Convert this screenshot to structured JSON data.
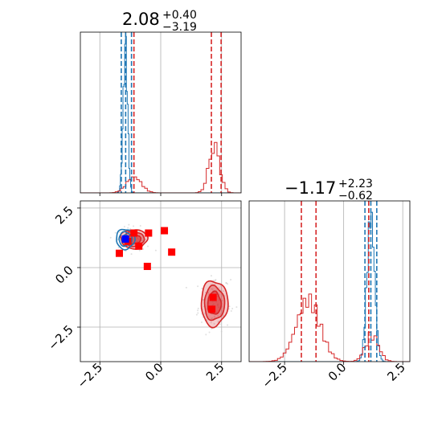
{
  "chart_data": {
    "type": "corner",
    "parameters": 2,
    "titles": [
      {
        "value": "2.08",
        "plus": "+0.40",
        "minus": "−3.19"
      },
      {
        "value": "−1.17",
        "plus": "+2.23",
        "minus": "−0.62"
      }
    ],
    "axes": {
      "param1_range": [
        -3.3,
        3.3
      ],
      "param2_range": [
        -3.95,
        2.8
      ],
      "param1_ticks": [
        "−2.5",
        "0.0",
        "2.5"
      ],
      "param1_tick_values": [
        -2.5,
        0.0,
        2.5
      ],
      "param2_ticks": [
        "−2.5",
        "0.0",
        "2.5"
      ],
      "param2_tick_values": [
        -2.5,
        0.0,
        2.5
      ],
      "diag2_range": [
        -4.0,
        2.8
      ]
    },
    "grid": true,
    "colors": {
      "blue": "#1f77b4",
      "red": "#d62728",
      "square_red": "#ff0000",
      "square_blue": "#0000ff",
      "grid": "#b0b0b0"
    },
    "series": [
      {
        "color": "#1f77b4",
        "param1_quantiles": [
          -1.62,
          -1.44,
          -1.2
        ],
        "param2_quantiles": [
          0.9,
          1.15,
          1.4
        ],
        "hist1_peak": -1.45,
        "hist2_peak": 1.15
      },
      {
        "color": "#d62728",
        "param1_quantiles": [
          -1.1,
          2.08,
          2.48
        ],
        "param2_quantiles": [
          -1.79,
          -1.17,
          1.06
        ],
        "modes": [
          {
            "center": [
              -1.1,
              1.2
            ],
            "spread": [
              0.55,
              0.4
            ]
          },
          {
            "center": [
              2.2,
              -1.5
            ],
            "spread": [
              0.55,
              0.95
            ]
          }
        ]
      }
    ],
    "squares_red": [
      [
        -1.7,
        0.6
      ],
      [
        -1.35,
        1.1
      ],
      [
        -1.1,
        1.45
      ],
      [
        -0.9,
        0.9
      ],
      [
        -0.5,
        1.45
      ],
      [
        0.15,
        1.55
      ],
      [
        0.45,
        0.65
      ],
      [
        -0.55,
        0.05
      ],
      [
        2.15,
        -1.25
      ],
      [
        2.1,
        -1.75
      ]
    ],
    "squares_blue": [
      [
        -1.45,
        1.2
      ]
    ]
  }
}
